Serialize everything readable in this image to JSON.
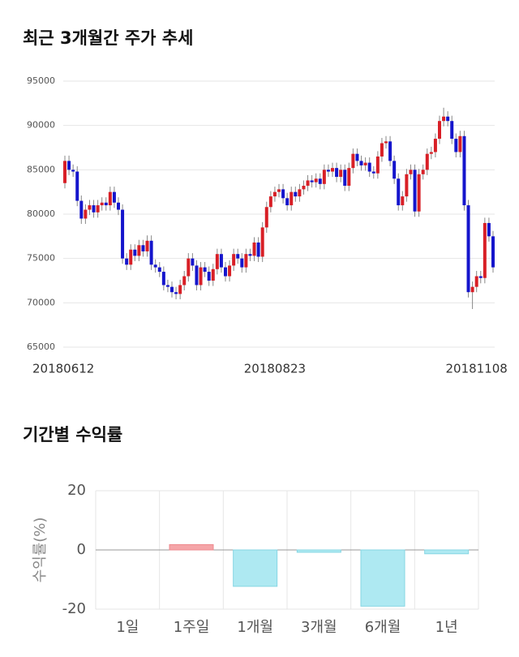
{
  "chart_data": [
    {
      "type": "candlestick",
      "title": "최근 3개월간 주가 추세",
      "categories": [
        "20180612",
        null,
        null,
        null,
        null,
        null,
        null,
        null,
        null,
        null,
        null,
        null,
        null,
        null,
        null,
        null,
        null,
        null,
        null,
        null,
        null,
        null,
        null,
        null,
        null,
        null,
        null,
        null,
        null,
        null,
        null,
        null,
        null,
        null,
        null,
        null,
        null,
        null,
        null,
        null,
        null,
        null,
        null,
        null,
        null,
        null,
        null,
        null,
        null,
        null,
        null,
        "20180823",
        null,
        null,
        null,
        null,
        null,
        null,
        null,
        null,
        null,
        null,
        null,
        null,
        null,
        null,
        null,
        null,
        null,
        null,
        null,
        null,
        null,
        null,
        null,
        null,
        null,
        null,
        null,
        null,
        null,
        null,
        null,
        null,
        null,
        null,
        null,
        null,
        null,
        null,
        null,
        null,
        null,
        null,
        null,
        null,
        null,
        null,
        null,
        null,
        "20181108",
        null,
        null,
        null,
        null
      ],
      "open": [
        83500,
        86000,
        85000,
        84800,
        81500,
        79500,
        80500,
        81000,
        80200,
        81000,
        81300,
        81000,
        82500,
        81300,
        80500,
        75000,
        74300,
        76000,
        75300,
        76500,
        75800,
        77000,
        74300,
        74000,
        73500,
        72000,
        71800,
        71200,
        71000,
        72000,
        73000,
        75000,
        74200,
        72000,
        74000,
        73500,
        72500,
        73800,
        75500,
        74000,
        73000,
        74200,
        75500,
        75000,
        74000,
        75500,
        75300,
        76800,
        75200,
        78500,
        80800,
        82000,
        82500,
        82800,
        81800,
        81000,
        82500,
        82000,
        82800,
        83200,
        83800,
        83600,
        84000,
        83400,
        85000,
        84800,
        85200,
        84200,
        85000,
        83200,
        85200,
        86800,
        86000,
        85500,
        85800,
        84800,
        84600,
        86500,
        88000,
        88200,
        86000,
        84000,
        81000,
        82000,
        84500,
        85000,
        80300,
        84500,
        85000,
        86800,
        87000,
        88500,
        90500,
        91000,
        90500,
        88500,
        87000,
        88800,
        81000,
        71200,
        71800,
        73000,
        72800,
        79000,
        77500
      ],
      "high": [
        86600,
        86600,
        85600,
        85400,
        82100,
        81100,
        81600,
        81600,
        81600,
        81900,
        81900,
        83100,
        83100,
        81900,
        81100,
        75600,
        76600,
        76600,
        77100,
        77100,
        77600,
        77600,
        74900,
        74600,
        74100,
        72600,
        72400,
        71800,
        72600,
        73600,
        75600,
        75600,
        74800,
        74600,
        74600,
        74100,
        74400,
        76100,
        76100,
        74600,
        74800,
        76100,
        76100,
        75600,
        76100,
        76100,
        77400,
        77400,
        79100,
        81400,
        82600,
        83100,
        83400,
        83400,
        82400,
        83100,
        83100,
        83400,
        83800,
        84400,
        84400,
        84600,
        84600,
        85600,
        85600,
        85800,
        85800,
        85600,
        85600,
        85800,
        87400,
        87400,
        86600,
        86400,
        86400,
        85400,
        87100,
        88600,
        88800,
        88800,
        86600,
        84600,
        82600,
        85100,
        85600,
        85600,
        85100,
        85600,
        87400,
        87600,
        89100,
        91100,
        92000,
        91600,
        91100,
        89100,
        89400,
        89400,
        81600,
        72400,
        73600,
        73600,
        79600,
        79600,
        78100
      ],
      "low": [
        82900,
        84400,
        84200,
        80900,
        78900,
        78900,
        79900,
        79600,
        79600,
        80400,
        80400,
        80400,
        80700,
        79900,
        74400,
        73700,
        73700,
        74700,
        74700,
        75200,
        75200,
        73700,
        73400,
        72900,
        71400,
        71200,
        70600,
        70400,
        70400,
        71400,
        72400,
        73600,
        71400,
        71400,
        72900,
        71900,
        71900,
        73200,
        73400,
        72400,
        72400,
        73600,
        74400,
        73400,
        73400,
        74700,
        74700,
        74600,
        74600,
        77900,
        80200,
        81400,
        81900,
        81200,
        80400,
        80400,
        81400,
        81400,
        82200,
        82600,
        83000,
        83000,
        82800,
        82800,
        84200,
        84200,
        83600,
        83600,
        82600,
        82600,
        84600,
        85400,
        84900,
        84900,
        84200,
        84000,
        84000,
        85900,
        87400,
        85400,
        83400,
        80400,
        80400,
        81400,
        83900,
        79700,
        79700,
        83900,
        84400,
        86200,
        86400,
        87900,
        89900,
        89900,
        87900,
        86400,
        86400,
        80400,
        70600,
        69300,
        71200,
        72200,
        72200,
        76900,
        73400
      ],
      "close": [
        86000,
        85000,
        84800,
        81500,
        79500,
        80500,
        81000,
        80200,
        81000,
        81300,
        81000,
        82500,
        81300,
        80500,
        75000,
        74300,
        76000,
        75300,
        76500,
        75800,
        77000,
        74300,
        74000,
        73500,
        72000,
        71800,
        71200,
        71000,
        72000,
        73000,
        75000,
        74200,
        72000,
        74000,
        73500,
        72500,
        73800,
        75500,
        74000,
        73000,
        74200,
        75500,
        75000,
        74000,
        75500,
        75300,
        76800,
        75200,
        78500,
        80800,
        82000,
        82500,
        82800,
        81800,
        81000,
        82500,
        82000,
        82800,
        83200,
        83800,
        83600,
        84000,
        83400,
        85000,
        84800,
        85200,
        84200,
        85000,
        83200,
        85200,
        86800,
        86000,
        85500,
        85800,
        84800,
        84600,
        86500,
        88000,
        88200,
        86000,
        84000,
        81000,
        82000,
        84500,
        85000,
        80300,
        84500,
        85000,
        86800,
        87000,
        88500,
        90500,
        91000,
        90500,
        88500,
        87000,
        88800,
        81000,
        71200,
        71800,
        73000,
        72800,
        79000,
        77500,
        74000
      ],
      "up_color": "#d81f26",
      "down_color": "#1515cc",
      "ylim": [
        65000,
        95000
      ],
      "yticks": [
        65000,
        70000,
        75000,
        80000,
        85000,
        90000,
        95000
      ],
      "grid": true
    },
    {
      "type": "bar",
      "title": "기간별 수익률",
      "y_label": "수익률(%)",
      "categories": [
        "1일",
        "1주일",
        "1개월",
        "3개월",
        "6개월",
        "1년"
      ],
      "values": [
        0,
        1.8,
        -12.3,
        -0.8,
        -19,
        -1.3
      ],
      "positive_color": "#f5a5a8",
      "negative_color": "#aee9f2",
      "ylim": [
        -20,
        20
      ],
      "yticks": [
        -20,
        0,
        20
      ],
      "grid": true
    }
  ]
}
